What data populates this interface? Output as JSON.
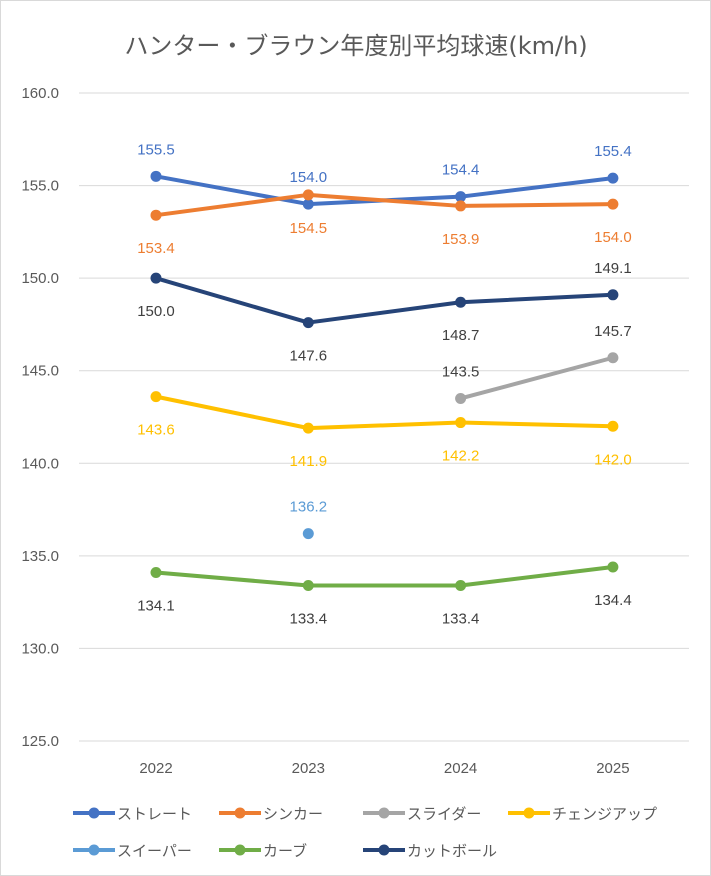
{
  "chart_data": {
    "type": "line",
    "title": "ハンター・ブラウン年度別平均球速(km/h)",
    "categories": [
      "2022",
      "2023",
      "2024",
      "2025"
    ],
    "ylim": [
      125,
      160
    ],
    "yticks": [
      "125.0",
      "130.0",
      "135.0",
      "140.0",
      "145.0",
      "150.0",
      "155.0",
      "160.0"
    ],
    "grid": true,
    "legend_position": "bottom",
    "series": [
      {
        "name": "ストレート",
        "color": "#4472C4",
        "values": [
          155.5,
          154.0,
          154.4,
          155.4
        ],
        "labels": [
          "155.5",
          "154.0",
          "154.4",
          "155.4"
        ],
        "label_pos": "above"
      },
      {
        "name": "シンカー",
        "color": "#ED7D31",
        "values": [
          153.4,
          154.5,
          153.9,
          154.0
        ],
        "labels": [
          "153.4",
          "154.5",
          "153.9",
          "154.0"
        ],
        "label_pos": "below"
      },
      {
        "name": "スライダー",
        "color": "#A5A5A5",
        "values": [
          null,
          null,
          143.5,
          145.7
        ],
        "labels": [
          null,
          null,
          "143.5",
          "145.7"
        ],
        "label_pos": "above"
      },
      {
        "name": "チェンジアップ",
        "color": "#FFC000",
        "values": [
          143.6,
          141.9,
          142.2,
          142.0
        ],
        "labels": [
          "143.6",
          "141.9",
          "142.2",
          "142.0"
        ],
        "label_pos": "below"
      },
      {
        "name": "スイーパー",
        "color": "#5B9BD5",
        "values": [
          null,
          136.2,
          null,
          null
        ],
        "labels": [
          null,
          "136.2",
          null,
          null
        ],
        "label_pos": "above"
      },
      {
        "name": "カーブ",
        "color": "#70AD47",
        "values": [
          134.1,
          133.4,
          133.4,
          134.4
        ],
        "labels": [
          "134.1",
          "133.4",
          "133.4",
          "134.4"
        ],
        "label_pos": "below"
      },
      {
        "name": "カットボール",
        "color": "#264478",
        "values": [
          150.0,
          147.6,
          148.7,
          149.1
        ],
        "labels": [
          "150.0",
          "147.6",
          "148.7",
          "149.1"
        ],
        "label_pos": "below"
      }
    ]
  }
}
